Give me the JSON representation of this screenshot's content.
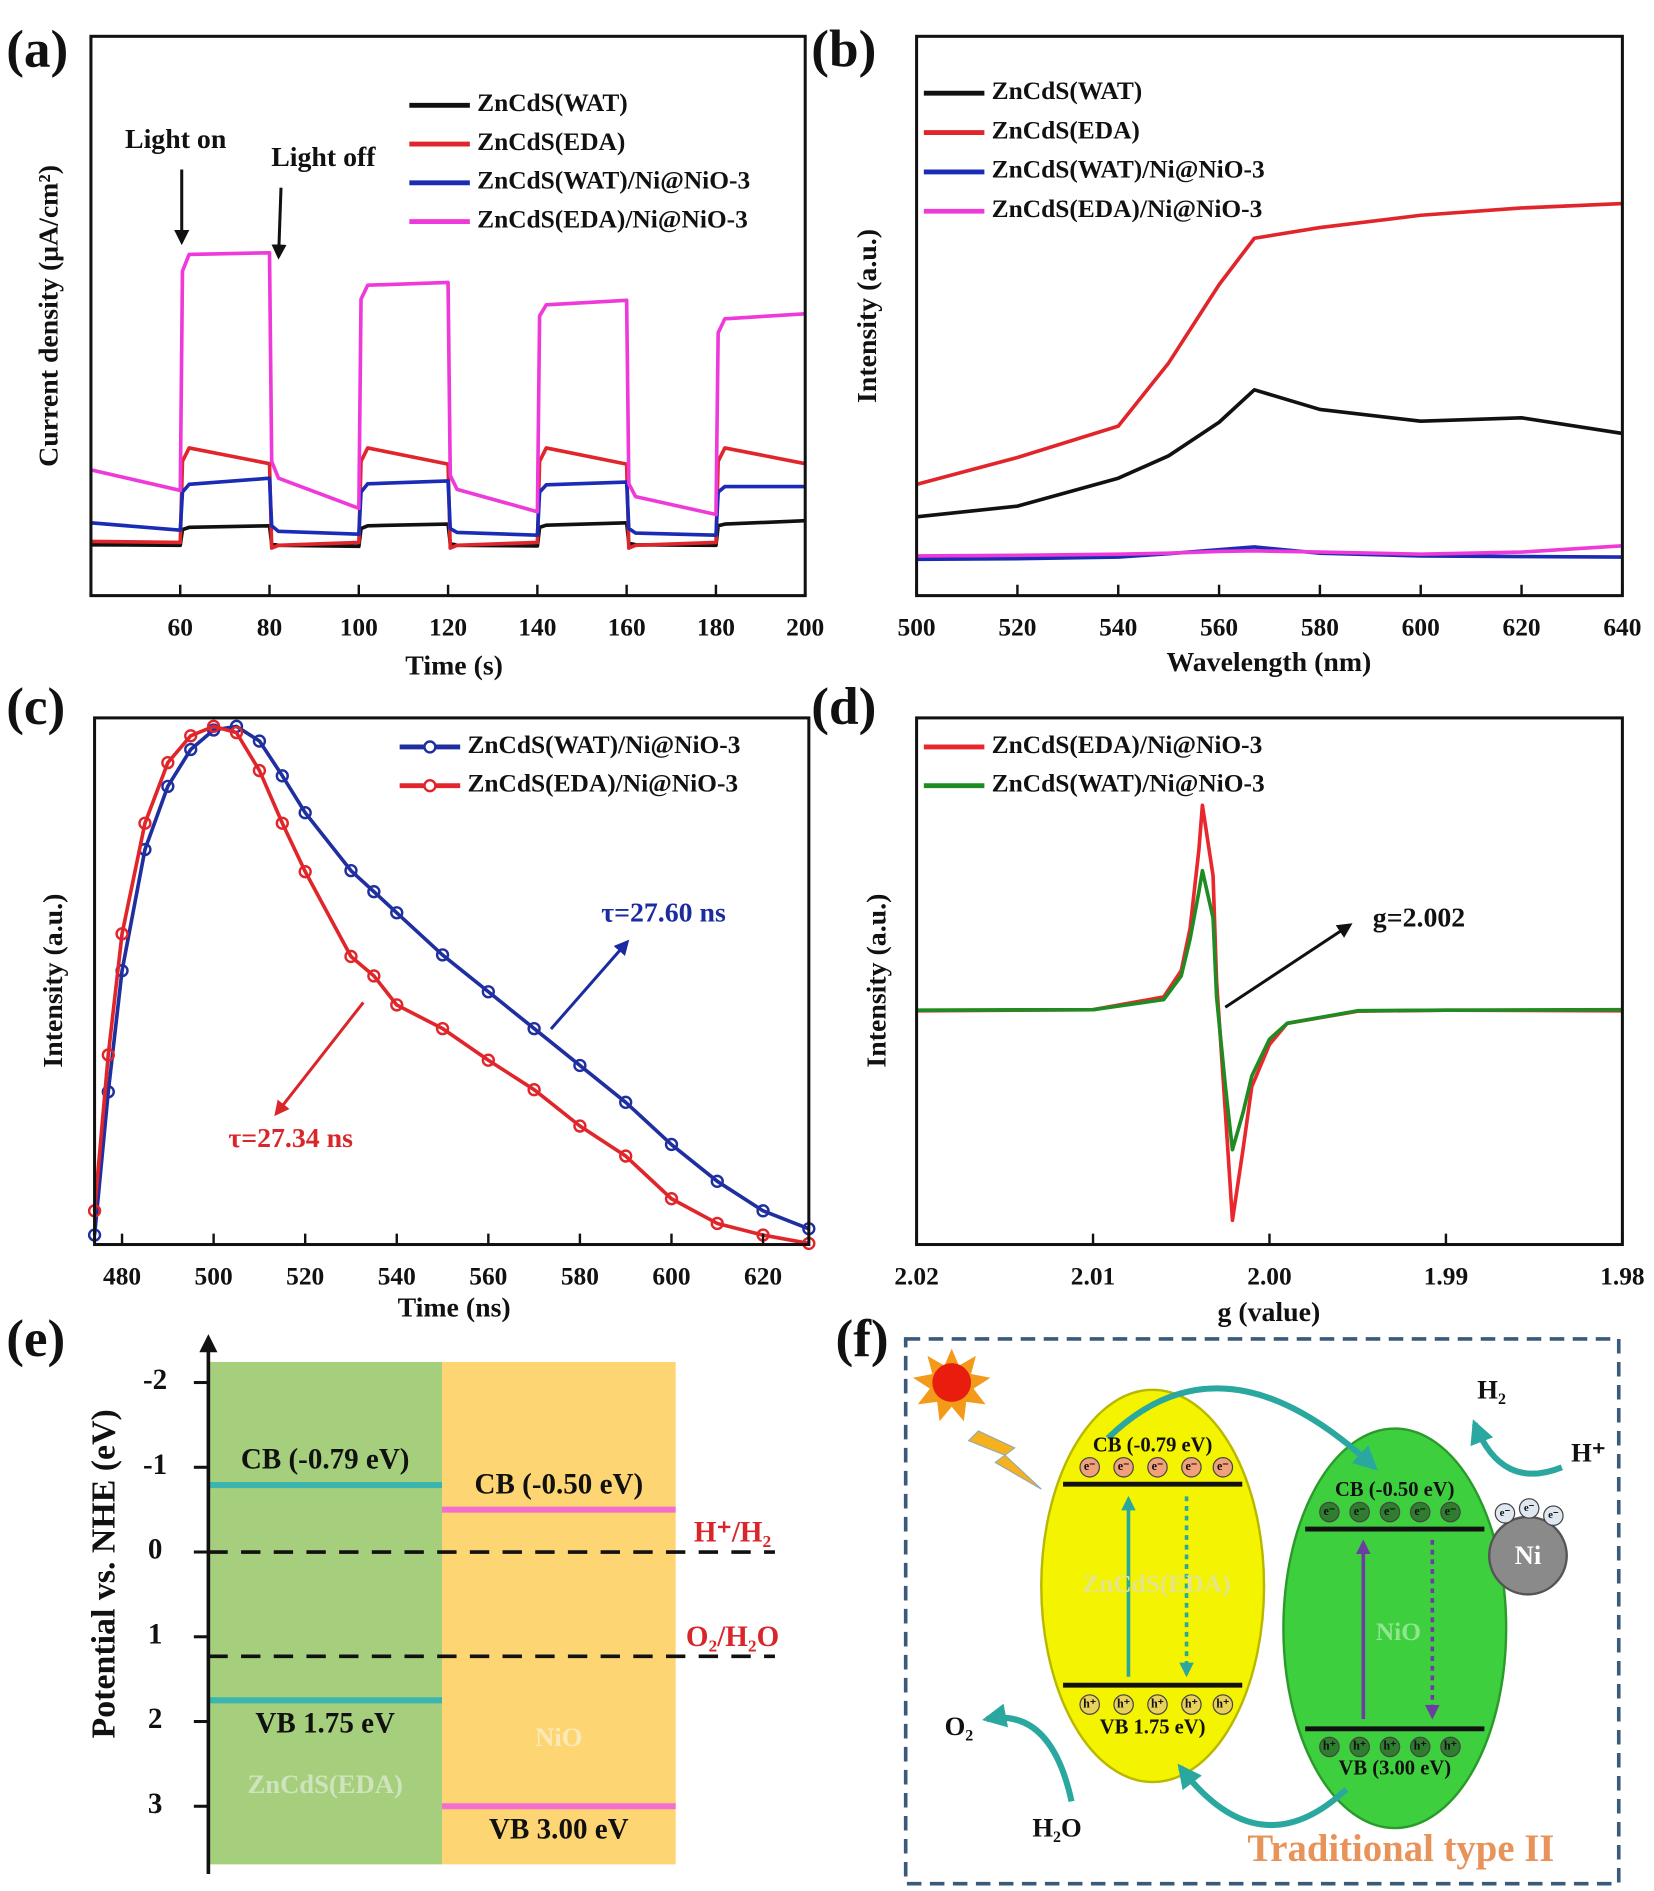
{
  "panel_labels": [
    "(a)",
    "(b)",
    "(c)",
    "(d)",
    "(e)",
    "(f)"
  ],
  "chart_data": [
    {
      "type": "line",
      "xlabel": "Time (s)",
      "ylabel": "Current density (μA/cm²)",
      "xlim": [
        40,
        200
      ],
      "xticks": [
        60,
        80,
        100,
        120,
        140,
        160,
        180,
        200
      ],
      "ylim": [
        0,
        100
      ],
      "legend": "upper right",
      "annotations": [
        "Light on",
        "Light off"
      ],
      "x": [
        40,
        60,
        60.5,
        62,
        80,
        80.5,
        82,
        100,
        100.5,
        102,
        120,
        120.5,
        122,
        140,
        140.5,
        142,
        160,
        160.5,
        162,
        180,
        180.5,
        182,
        200
      ],
      "series": [
        {
          "name": "ZnCdS(WAT)",
          "color": "#111111",
          "values": [
            9.1,
            9,
            11.8,
            12.2,
            12.5,
            9.2,
            9,
            8.8,
            12,
            12.5,
            12.8,
            9.3,
            9,
            8.9,
            12.2,
            12.6,
            13,
            9.4,
            9.1,
            9,
            12.5,
            12.8,
            13.4
          ]
        },
        {
          "name": "ZnCdS(EDA)",
          "color": "#e0262b",
          "values": [
            9.7,
            9.5,
            24,
            26.4,
            23.6,
            8.5,
            9,
            9.5,
            24,
            26.4,
            23.5,
            8.5,
            9,
            9.5,
            24,
            26.4,
            23.5,
            8.5,
            9,
            9.5,
            24,
            26.4,
            23.6
          ]
        },
        {
          "name": "ZnCdS(WAT)/Ni@NiO-3",
          "color": "#1a2cb5",
          "values": [
            13,
            11.7,
            18.5,
            19.9,
            21,
            12.5,
            11.5,
            11,
            18.5,
            20,
            20.5,
            12,
            11.3,
            10.8,
            18.5,
            19.8,
            20.3,
            12,
            11.2,
            10.8,
            18.5,
            19.5,
            19.5
          ]
        },
        {
          "name": "ZnCdS(EDA)/Ni@NiO-3",
          "color": "#ee3ad9",
          "values": [
            22.5,
            18.8,
            58,
            61,
            61.3,
            24,
            21,
            15.6,
            53,
            55.5,
            56,
            21.5,
            19,
            15,
            50,
            52,
            52.8,
            20,
            17.7,
            14.5,
            47,
            49.5,
            50.4
          ]
        }
      ]
    },
    {
      "type": "line",
      "xlabel": "Wavelength (nm)",
      "ylabel": "Intensity (a.u.)",
      "xlim": [
        500,
        640
      ],
      "xticks": [
        500,
        520,
        540,
        560,
        580,
        600,
        620,
        640
      ],
      "ylim": [
        0,
        100
      ],
      "legend": "upper left",
      "x": [
        500,
        520,
        540,
        550,
        560,
        567,
        580,
        600,
        620,
        640
      ],
      "series": [
        {
          "name": "ZnCdS(WAT)",
          "color": "#111111",
          "values": [
            14.1,
            16,
            21,
            25,
            31,
            36.8,
            33.3,
            31.2,
            31.8,
            29
          ]
        },
        {
          "name": "ZnCdS(EDA)",
          "color": "#e0262b",
          "values": [
            19.9,
            24.7,
            30.3,
            41.6,
            55.6,
            63.9,
            65.8,
            68,
            69.3,
            70.1
          ]
        },
        {
          "name": "ZnCdS(WAT)/Ni@NiO-3",
          "color": "#1a2cb5",
          "values": [
            6.5,
            6.6,
            6.9,
            7.5,
            8.2,
            8.7,
            7.6,
            7.1,
            7,
            6.9
          ]
        },
        {
          "name": "ZnCdS(EDA)/Ni@NiO-3",
          "color": "#ee3ad9",
          "values": [
            7.1,
            7.2,
            7.4,
            7.6,
            7.9,
            8,
            7.8,
            7.4,
            7.8,
            8.9
          ]
        }
      ]
    },
    {
      "type": "line",
      "markers": true,
      "xlabel": "Time (ns)",
      "ylabel": "Intensity (a.u.)",
      "xlim": [
        474,
        630
      ],
      "xticks": [
        480,
        500,
        520,
        540,
        560,
        580,
        600,
        620
      ],
      "ylim": [
        0,
        100
      ],
      "legend": "upper right",
      "annotations": [
        "τ=27.60 ns",
        "τ=27.34 ns"
      ],
      "x": [
        474,
        477,
        480,
        485,
        490,
        495,
        500,
        505,
        510,
        515,
        520,
        530,
        535,
        540,
        550,
        560,
        570,
        580,
        590,
        600,
        610,
        620,
        630
      ],
      "series": [
        {
          "name": "ZnCdS(WAT)/Ni@NiO-3",
          "color": "#1f2fa0",
          "values": [
            1.8,
            29,
            52,
            75,
            87,
            94,
            97.7,
            98.4,
            95.6,
            89,
            82,
            71,
            67,
            63,
            55,
            48,
            41,
            34,
            27,
            19,
            12,
            6.4,
            3
          ]
        },
        {
          "name": "ZnCdS(EDA)/Ni@NiO-3",
          "color": "#e0262b",
          "values": [
            6.4,
            36,
            59,
            80,
            91.5,
            96.6,
            98.4,
            97.2,
            90,
            80,
            70.8,
            54.7,
            51,
            45.5,
            41,
            35,
            29.4,
            22.5,
            16.8,
            8.7,
            4,
            1.8,
            0.2
          ]
        }
      ]
    },
    {
      "type": "line",
      "xlabel": "g (value)",
      "ylabel": "Intensity (a.u.)",
      "xlim": [
        2.02,
        1.98
      ],
      "xticks": [
        2.02,
        2.01,
        {
          "value": 2,
          "label": "2.00"
        },
        1.99,
        1.98
      ],
      "ylim": [
        0,
        100
      ],
      "legend": "upper left",
      "annotations": [
        "g=2.002"
      ],
      "x": [
        2.02,
        2.01,
        2.006,
        2.005,
        2.0045,
        2.004,
        2.0038,
        2.0032,
        2.003,
        2.0025,
        2.0021,
        2.0015,
        2.001,
        2.0,
        1.999,
        1.995,
        1.99,
        1.98
      ],
      "series": [
        {
          "name": "ZnCdS(EDA)/Ni@NiO-3",
          "color": "#e8282c",
          "values": [
            44.4,
            44.6,
            47,
            52,
            60,
            75,
            83.4,
            70,
            50,
            25,
            4.6,
            18,
            30,
            38,
            42,
            44.3,
            44.5,
            44.4
          ]
        },
        {
          "name": "ZnCdS(WAT)/Ni@NiO-3",
          "color": "#1e8c22",
          "values": [
            44.5,
            44.6,
            46.5,
            51,
            58,
            67,
            71,
            62,
            47,
            30,
            18,
            25,
            32,
            39,
            42,
            44.4,
            44.5,
            44.6
          ]
        }
      ]
    },
    {
      "type": "band",
      "ylabel": "Potential vs. NHE (eV)",
      "ylim": [
        -2.5,
        3.8
      ],
      "yticks": [
        -2,
        -1,
        0,
        1,
        2,
        3
      ],
      "bands": [
        {
          "name": "ZnCdS(EDA)",
          "color": "#a5cf7c",
          "line_color": "#3bb5b0",
          "cb": -0.79,
          "vb": 1.75,
          "cb_label": "CB (-0.79 eV)",
          "vb_label": "VB 1.75 eV"
        },
        {
          "name": "NiO",
          "color": "#fdd572",
          "line_color": "#f26fcf",
          "cb": -0.5,
          "vb": 3,
          "cb_label": "CB (-0.50 eV)",
          "vb_label": "VB 3.00 eV"
        }
      ],
      "levels": [
        {
          "name": "H⁺/H₂",
          "value": 0
        },
        {
          "name": "O₂/H₂O",
          "value": 1.23
        }
      ]
    }
  ],
  "diagram": {
    "semiconductors": [
      {
        "name": "ZnCdS(EDA)",
        "cb_label": "CB (-0.79 eV)",
        "vb_label": "VB 1.75 eV)"
      },
      {
        "name": "NiO",
        "cb_label": "CB (-0.50 eV)",
        "vb_label": "VB (3.00 eV)"
      }
    ],
    "cocatalyst": "Ni",
    "electron": "e⁻",
    "hole": "h⁺",
    "h2": "H₂",
    "h_plus": "H⁺",
    "o2": "O₂",
    "h2o": "H₂O",
    "caption": "Traditional type II"
  }
}
